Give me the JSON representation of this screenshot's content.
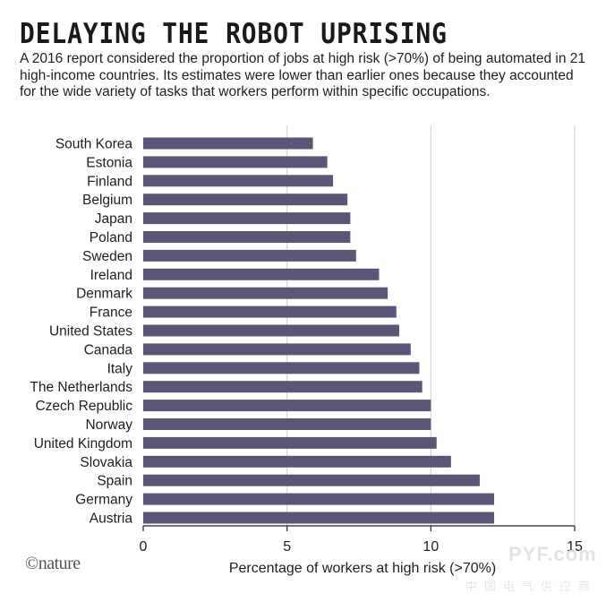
{
  "header": {
    "headline": "DELAYING THE ROBOT UPRISING",
    "subtitle": "A 2016 report considered the proportion of jobs at high risk (>70%) of being automated in 21 high-income countries. Its estimates were lower than earlier ones because they accounted for the wide variety of tasks that workers perform within specific occupations."
  },
  "brand": {
    "text": "©nature"
  },
  "watermark": {
    "main": "PYF.com",
    "sub": "中国电气供应商"
  },
  "colors": {
    "bar": "#5b5677",
    "grid": "#cfcfcf",
    "axis": "#222222",
    "text": "#1e1e1e"
  },
  "chart_data": {
    "type": "bar",
    "orientation": "horizontal",
    "title": "DELAYING THE ROBOT UPRISING",
    "xlabel": "Percentage of workers at high risk (>70%)",
    "ylabel": "",
    "xlim": [
      0,
      15
    ],
    "xticks": [
      0,
      5,
      10,
      15
    ],
    "grid": true,
    "categories": [
      "South Korea",
      "Estonia",
      "Finland",
      "Belgium",
      "Japan",
      "Poland",
      "Sweden",
      "Ireland",
      "Denmark",
      "France",
      "United States",
      "Canada",
      "Italy",
      "The Netherlands",
      "Czech Republic",
      "Norway",
      "United Kingdom",
      "Slovakia",
      "Spain",
      "Germany",
      "Austria"
    ],
    "values": [
      5.9,
      6.4,
      6.6,
      7.1,
      7.2,
      7.2,
      7.4,
      8.2,
      8.5,
      8.8,
      8.9,
      9.3,
      9.6,
      9.7,
      10.0,
      10.0,
      10.2,
      10.7,
      11.7,
      12.2,
      12.2
    ]
  }
}
